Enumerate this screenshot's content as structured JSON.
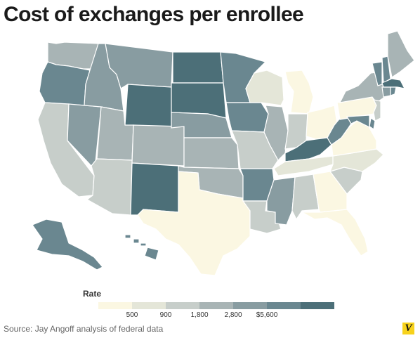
{
  "title": "Cost of exchanges per enrollee",
  "legend": {
    "label": "Rate",
    "ticks": [
      "500",
      "900",
      "1,800",
      "2,800",
      "$5,600"
    ],
    "colors": [
      "#fbf7e2",
      "#e4e6d8",
      "#c7ceca",
      "#a8b4b5",
      "#889ca1",
      "#6a8790",
      "#4c6f78"
    ]
  },
  "source": "Source: Jay Angoff analysis of federal data",
  "logo": "V",
  "rate_bins": {
    "WA": 3,
    "OR": 5,
    "CA": 2,
    "NV": 4,
    "ID": 4,
    "MT": 4,
    "WY": 6,
    "UT": 3,
    "AZ": 2,
    "CO": 3,
    "NM": 6,
    "ND": 6,
    "SD": 6,
    "NE": 4,
    "KS": 3,
    "OK": 3,
    "TX": 0,
    "MN": 5,
    "IA": 5,
    "MO": 2,
    "AR": 5,
    "LA": 2,
    "WI": 1,
    "IL": 3,
    "MI": 0,
    "IN": 2,
    "OH": 0,
    "KY": 6,
    "TN": 1,
    "MS": 4,
    "AL": 2,
    "GA": 0,
    "FL": 0,
    "SC": 2,
    "NC": 1,
    "VA": 0,
    "WV": 5,
    "PA": 0,
    "NY": 3,
    "ME": 3,
    "VT": 5,
    "NH": 5,
    "MA": 6,
    "RI": 5,
    "CT": 4,
    "NJ": 2,
    "DE": 5,
    "MD": 5,
    "AK": 5,
    "HI": 5
  }
}
